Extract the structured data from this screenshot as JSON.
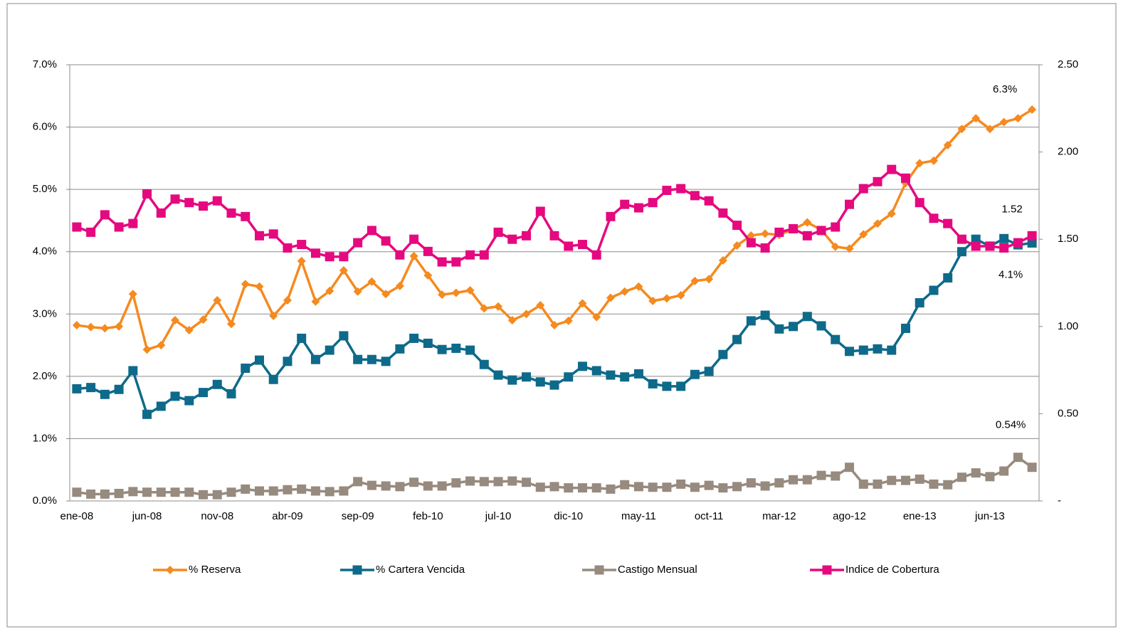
{
  "chart_data": {
    "type": "line",
    "categories": [
      "ene-08",
      null,
      null,
      null,
      null,
      "jun-08",
      null,
      null,
      null,
      null,
      "nov-08",
      null,
      null,
      null,
      null,
      "abr-09",
      null,
      null,
      null,
      null,
      "sep-09",
      null,
      null,
      null,
      null,
      "feb-10",
      null,
      null,
      null,
      null,
      "jul-10",
      null,
      null,
      null,
      null,
      "dic-10",
      null,
      null,
      null,
      null,
      "may-11",
      null,
      null,
      null,
      null,
      "oct-11",
      null,
      null,
      null,
      null,
      "mar-12",
      null,
      null,
      null,
      null,
      "ago-12",
      null,
      null,
      null,
      null,
      "ene-13",
      null,
      null,
      null,
      null,
      "jun-13",
      null,
      null,
      null
    ],
    "ylim": [
      0,
      7
    ],
    "yticks": [
      {
        "value": 0,
        "label": "0.0%"
      },
      {
        "value": 1,
        "label": "1.0%"
      },
      {
        "value": 2,
        "label": "2.0%"
      },
      {
        "value": 3,
        "label": "3.0%"
      },
      {
        "value": 4,
        "label": "4.0%"
      },
      {
        "value": 5,
        "label": "5.0%"
      },
      {
        "value": 6,
        "label": "6.0%"
      },
      {
        "value": 7,
        "label": "7.0%"
      }
    ],
    "y2lim": [
      0,
      2.5
    ],
    "y2ticks": [
      {
        "value": 0,
        "label": "-"
      },
      {
        "value": 0.5,
        "label": "0.50"
      },
      {
        "value": 1,
        "label": "1.00"
      },
      {
        "value": 1.5,
        "label": "1.50"
      },
      {
        "value": 2,
        "label": "2.00"
      },
      {
        "value": 2.5,
        "label": "2.50"
      }
    ],
    "grid": true,
    "legend": "bottom",
    "series": [
      {
        "name": "% Reserva",
        "color": "#f58a1f",
        "marker": "diamond",
        "values": [
          2.82,
          2.79,
          2.77,
          2.8,
          3.32,
          2.43,
          2.5,
          2.9,
          2.74,
          2.91,
          3.22,
          2.84,
          3.48,
          3.44,
          2.97,
          3.22,
          3.85,
          3.2,
          3.37,
          3.7,
          3.36,
          3.52,
          3.32,
          3.45,
          3.93,
          3.62,
          3.31,
          3.34,
          3.38,
          3.09,
          3.12,
          2.9,
          3.0,
          3.14,
          2.82,
          2.89,
          3.17,
          2.95,
          3.26,
          3.36,
          3.44,
          3.21,
          3.25,
          3.3,
          3.53,
          3.56,
          3.86,
          4.1,
          4.26,
          4.29,
          4.27,
          4.36,
          4.47,
          4.35,
          4.08,
          4.05,
          4.28,
          4.45,
          4.61,
          5.1,
          5.42,
          5.46,
          5.71,
          5.97,
          6.14,
          5.97,
          6.08,
          6.14,
          6.28
        ],
        "value_labels": [
          null,
          null,
          null,
          null,
          null,
          null,
          null,
          null,
          null,
          null,
          null,
          null,
          null,
          null,
          null,
          null,
          null,
          null,
          null,
          null,
          null,
          null,
          null,
          null,
          null,
          null,
          null,
          null,
          null,
          null,
          null,
          null,
          null,
          null,
          null,
          null,
          null,
          null,
          null,
          null,
          null,
          null,
          null,
          null,
          null,
          null,
          null,
          null,
          null,
          null,
          null,
          null,
          null,
          null,
          null,
          null,
          null,
          null,
          null,
          null,
          null,
          null,
          null,
          null,
          null,
          null,
          null,
          null,
          "6.3%"
        ]
      },
      {
        "name": "% Cartera Vencida",
        "color": "#0e6a8a",
        "marker": "square",
        "values": [
          1.8,
          1.82,
          1.71,
          1.79,
          2.09,
          1.39,
          1.52,
          1.68,
          1.61,
          1.74,
          1.87,
          1.72,
          2.13,
          2.26,
          1.95,
          2.24,
          2.61,
          2.27,
          2.42,
          2.65,
          2.27,
          2.27,
          2.24,
          2.44,
          2.61,
          2.53,
          2.43,
          2.45,
          2.42,
          2.19,
          2.02,
          1.94,
          1.99,
          1.91,
          1.86,
          1.99,
          2.16,
          2.09,
          2.02,
          1.99,
          2.04,
          1.88,
          1.84,
          1.84,
          2.03,
          2.08,
          2.35,
          2.59,
          2.89,
          2.98,
          2.76,
          2.8,
          2.96,
          2.81,
          2.59,
          2.4,
          2.42,
          2.44,
          2.42,
          2.77,
          3.18,
          3.38,
          3.58,
          4.0,
          4.2,
          4.09,
          4.21,
          4.11,
          4.14
        ],
        "value_labels": [
          null,
          null,
          null,
          null,
          null,
          null,
          null,
          null,
          null,
          null,
          null,
          null,
          null,
          null,
          null,
          null,
          null,
          null,
          null,
          null,
          null,
          null,
          null,
          null,
          null,
          null,
          null,
          null,
          null,
          null,
          null,
          null,
          null,
          null,
          null,
          null,
          null,
          null,
          null,
          null,
          null,
          null,
          null,
          null,
          null,
          null,
          null,
          null,
          null,
          null,
          null,
          null,
          null,
          null,
          null,
          null,
          null,
          null,
          null,
          null,
          null,
          null,
          null,
          null,
          null,
          null,
          null,
          null,
          "4.1%"
        ]
      },
      {
        "name": "Castigo Mensual",
        "color": "#978a7e",
        "marker": "square",
        "values": [
          0.14,
          0.11,
          0.11,
          0.12,
          0.15,
          0.14,
          0.14,
          0.14,
          0.14,
          0.1,
          0.1,
          0.14,
          0.19,
          0.16,
          0.16,
          0.18,
          0.19,
          0.16,
          0.15,
          0.16,
          0.31,
          0.25,
          0.24,
          0.23,
          0.3,
          0.24,
          0.24,
          0.29,
          0.32,
          0.31,
          0.31,
          0.32,
          0.3,
          0.22,
          0.23,
          0.21,
          0.21,
          0.21,
          0.19,
          0.26,
          0.23,
          0.22,
          0.22,
          0.27,
          0.22,
          0.25,
          0.21,
          0.23,
          0.29,
          0.24,
          0.29,
          0.34,
          0.34,
          0.41,
          0.4,
          0.54,
          0.27,
          0.27,
          0.33,
          0.33,
          0.35,
          0.27,
          0.26,
          0.38,
          0.45,
          0.39,
          0.48,
          0.7,
          0.54
        ],
        "value_labels": [
          null,
          null,
          null,
          null,
          null,
          null,
          null,
          null,
          null,
          null,
          null,
          null,
          null,
          null,
          null,
          null,
          null,
          null,
          null,
          null,
          null,
          null,
          null,
          null,
          null,
          null,
          null,
          null,
          null,
          null,
          null,
          null,
          null,
          null,
          null,
          null,
          null,
          null,
          null,
          null,
          null,
          null,
          null,
          null,
          null,
          null,
          null,
          null,
          null,
          null,
          null,
          null,
          null,
          null,
          null,
          null,
          null,
          null,
          null,
          null,
          null,
          null,
          null,
          null,
          null,
          null,
          null,
          null,
          "0.54%"
        ]
      },
      {
        "name": "Indice de Cobertura",
        "color": "#e5097f",
        "marker": "square",
        "axis": "y2",
        "values": [
          1.57,
          1.54,
          1.64,
          1.57,
          1.59,
          1.76,
          1.65,
          1.73,
          1.71,
          1.69,
          1.72,
          1.65,
          1.63,
          1.52,
          1.53,
          1.45,
          1.47,
          1.42,
          1.4,
          1.4,
          1.48,
          1.55,
          1.49,
          1.41,
          1.5,
          1.43,
          1.37,
          1.37,
          1.41,
          1.41,
          1.54,
          1.5,
          1.52,
          1.66,
          1.52,
          1.46,
          1.47,
          1.41,
          1.63,
          1.7,
          1.68,
          1.71,
          1.78,
          1.79,
          1.75,
          1.72,
          1.65,
          1.58,
          1.48,
          1.45,
          1.54,
          1.56,
          1.52,
          1.55,
          1.57,
          1.7,
          1.79,
          1.83,
          1.9,
          1.85,
          1.71,
          1.62,
          1.59,
          1.5,
          1.46,
          1.46,
          1.45,
          1.48,
          1.52
        ],
        "value_labels": [
          null,
          null,
          null,
          null,
          null,
          null,
          null,
          null,
          null,
          null,
          null,
          null,
          null,
          null,
          null,
          null,
          null,
          null,
          null,
          null,
          null,
          null,
          null,
          null,
          null,
          null,
          null,
          null,
          null,
          null,
          null,
          null,
          null,
          null,
          null,
          null,
          null,
          null,
          null,
          null,
          null,
          null,
          null,
          null,
          null,
          null,
          null,
          null,
          null,
          null,
          null,
          null,
          null,
          null,
          null,
          null,
          null,
          null,
          null,
          null,
          null,
          null,
          null,
          null,
          null,
          null,
          null,
          null,
          "1.52"
        ]
      }
    ]
  }
}
